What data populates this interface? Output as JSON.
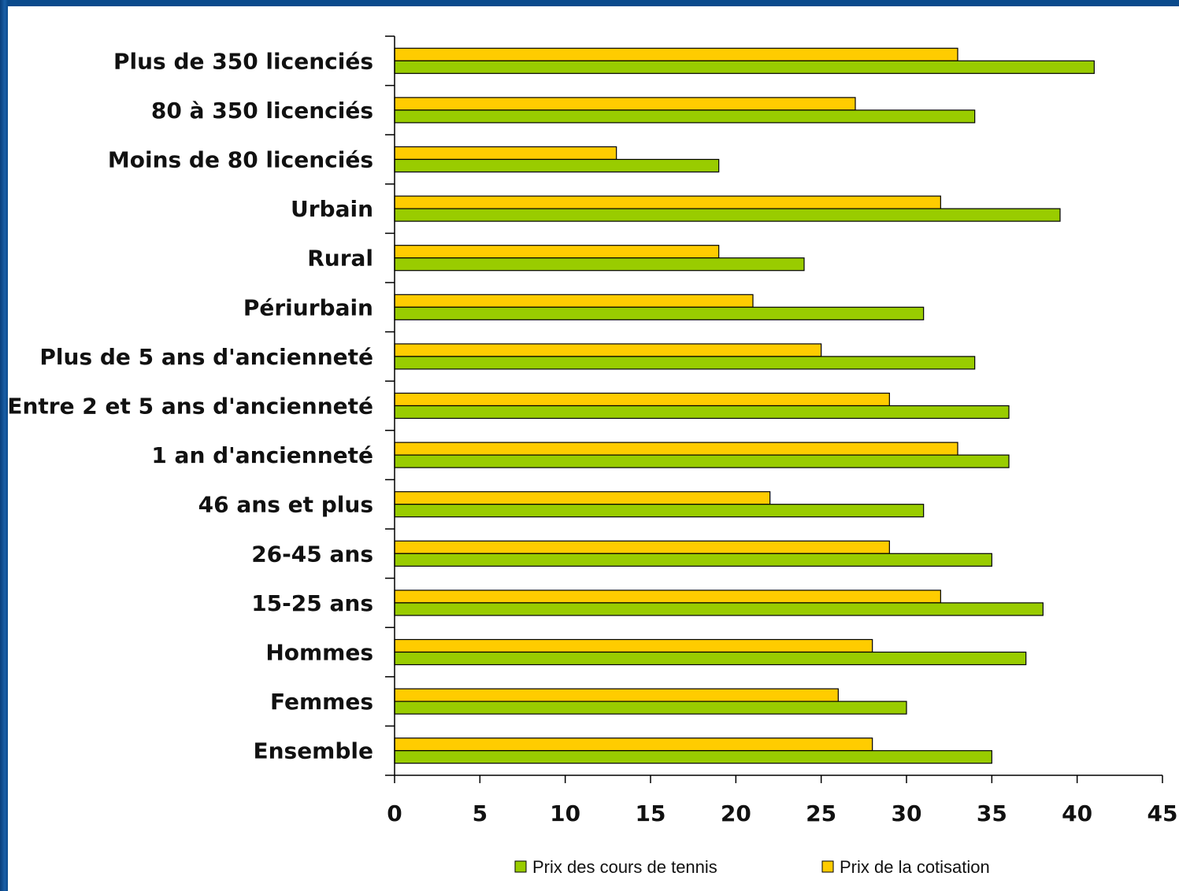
{
  "colors": {
    "green": "#99cc00",
    "yellow": "#ffcc00",
    "frame": "#0a4a8c"
  },
  "chart_data": {
    "type": "bar",
    "orientation": "horizontal",
    "categories": [
      "Plus de 350 licenciés",
      "80 à 350 licenciés",
      "Moins de 80 licenciés",
      "Urbain",
      "Rural",
      "Périurbain",
      "Plus de 5 ans d'ancienneté",
      "Entre 2 et 5 ans d'ancienneté",
      "1 an d'ancienneté",
      "46 ans et plus",
      "26-45 ans",
      "15-25 ans",
      "Hommes",
      "Femmes",
      "Ensemble"
    ],
    "series": [
      {
        "name": "Prix de la cotisation",
        "color": "#ffcc00",
        "values": [
          33,
          27,
          13,
          32,
          19,
          21,
          25,
          29,
          33,
          22,
          29,
          32,
          28,
          26,
          28
        ]
      },
      {
        "name": "Prix des cours de tennis",
        "color": "#99cc00",
        "values": [
          41,
          34,
          19,
          39,
          24,
          31,
          34,
          36,
          36,
          31,
          35,
          38,
          37,
          30,
          35
        ]
      }
    ],
    "xlim": [
      0,
      45
    ],
    "xticks": [
      "0",
      "5",
      "10",
      "15",
      "20",
      "25",
      "30",
      "35",
      "40",
      "45"
    ],
    "legend": {
      "placement": "bottom",
      "items": [
        "Prix des cours de tennis",
        "Prix de la cotisation"
      ]
    },
    "grid": false
  }
}
